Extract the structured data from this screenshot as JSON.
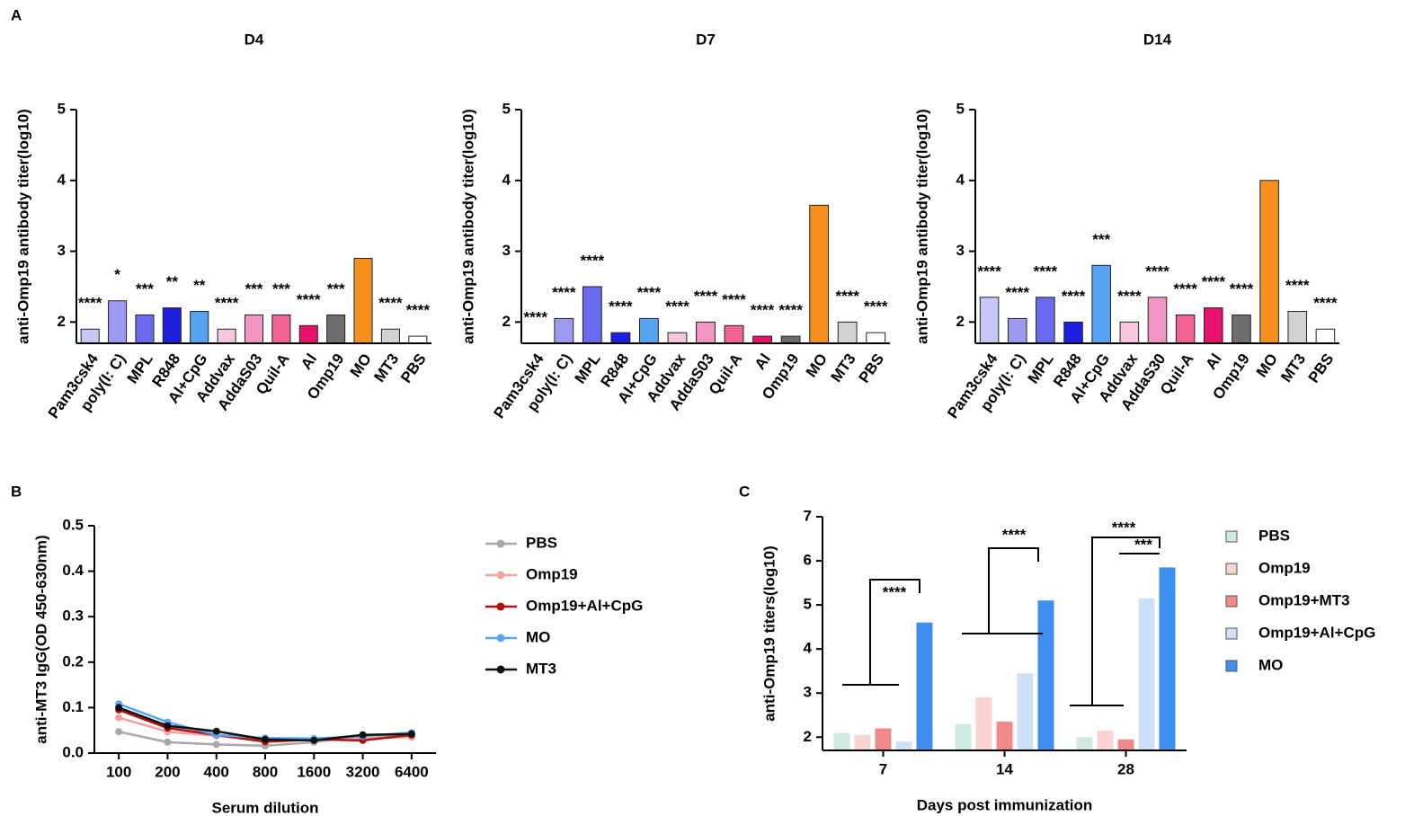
{
  "panel_labels": [
    "A",
    "B",
    "C"
  ],
  "chart_data": [
    {
      "type": "bar",
      "title": "D4",
      "y_label": "anti-Omp19 antibody titer(log10)",
      "categories": [
        "Pam3csk4",
        "poly(I: C)",
        "MPL",
        "R848",
        "Al+CpG",
        "Addvax",
        "AddaS03",
        "Quil-A",
        "Al",
        "Omp19",
        "MO",
        "MT3",
        "PBS"
      ],
      "colors": [
        "#c7c7f7",
        "#9b9bf2",
        "#6a6aee",
        "#1f1fe0",
        "#58a2f2",
        "#f6c6dc",
        "#f294c4",
        "#f06394",
        "#e8126c",
        "#6e6e6e",
        "#f5901f",
        "#d2d2d2",
        "#ffffff"
      ],
      "values": [
        1.9,
        2.3,
        2.1,
        2.2,
        2.15,
        1.9,
        2.1,
        2.1,
        1.95,
        2.1,
        2.9,
        1.9,
        1.8
      ],
      "annotations": [
        "****",
        "*",
        "***",
        "**",
        "**",
        "****",
        "***",
        "***",
        "****",
        "***",
        null,
        "****",
        "****"
      ],
      "ylim": [
        1.7,
        5
      ],
      "yticks": [
        2,
        3,
        4,
        5
      ]
    },
    {
      "type": "bar",
      "title": "D7",
      "y_label": "anti-Omp19 antibody titer(log10)",
      "categories": [
        "Pam3csk4",
        "poly(I: C)",
        "MPL",
        "R848",
        "Al+CpG",
        "Addvax",
        "AddaS03",
        "Quil-A",
        "Al",
        "Omp19",
        "MO",
        "MT3",
        "PBS"
      ],
      "colors": [
        "#c7c7f7",
        "#9b9bf2",
        "#6a6aee",
        "#1f1fe0",
        "#58a2f2",
        "#f6c6dc",
        "#f294c4",
        "#f06394",
        "#e8126c",
        "#6e6e6e",
        "#f5901f",
        "#d2d2d2",
        "#ffffff"
      ],
      "values": [
        1.7,
        2.05,
        2.5,
        1.85,
        2.05,
        1.85,
        2.0,
        1.95,
        1.8,
        1.8,
        3.65,
        2.0,
        1.85
      ],
      "annotations": [
        "****",
        "****",
        "****",
        "****",
        "****",
        "****",
        "****",
        "****",
        "****",
        "****",
        null,
        "****",
        "****"
      ],
      "ylim": [
        1.7,
        5
      ],
      "yticks": [
        2,
        3,
        4,
        5
      ]
    },
    {
      "type": "bar",
      "title": "D14",
      "y_label": "anti-Omp19 antibody titer(log10)",
      "categories": [
        "Pam3csk4",
        "poly(I: C)",
        "MPL",
        "R848",
        "Al+CpG",
        "Addvax",
        "AddaS30",
        "Quil-A",
        "Al",
        "Omp19",
        "MO",
        "MT3",
        "PBS"
      ],
      "colors": [
        "#c7c7f7",
        "#9b9bf2",
        "#6a6aee",
        "#1f1fe0",
        "#58a2f2",
        "#f6c6dc",
        "#f294c4",
        "#f06394",
        "#e8126c",
        "#6e6e6e",
        "#f5901f",
        "#d2d2d2",
        "#ffffff"
      ],
      "values": [
        2.35,
        2.05,
        2.35,
        2.0,
        2.8,
        2.0,
        2.35,
        2.1,
        2.2,
        2.1,
        4.0,
        2.15,
        1.9
      ],
      "annotations": [
        "****",
        "****",
        "****",
        "****",
        "***",
        "****",
        "****",
        "****",
        "****",
        "****",
        null,
        "****",
        "****"
      ],
      "ylim": [
        1.7,
        5
      ],
      "yticks": [
        2,
        3,
        4,
        5
      ]
    },
    {
      "type": "line",
      "x_label": "Serum dilution",
      "y_label": "anti-MT3 IgG(OD 450-630nm)",
      "categories": [
        "100",
        "200",
        "400",
        "800",
        "1600",
        "3200",
        "6400"
      ],
      "series": [
        {
          "name": "PBS",
          "color": "#a8a8a8",
          "values": [
            0.047,
            0.024,
            0.019,
            0.016,
            0.024,
            0.04,
            0.035
          ]
        },
        {
          "name": "Omp19",
          "color": "#f5a0a0",
          "values": [
            0.078,
            0.047,
            0.038,
            0.028,
            0.03,
            0.033,
            0.035
          ]
        },
        {
          "name": "Omp19+Al+CpG",
          "color": "#b01010",
          "values": [
            0.095,
            0.055,
            0.04,
            0.025,
            0.03,
            0.028,
            0.04
          ]
        },
        {
          "name": "MO",
          "color": "#5aa5f5",
          "values": [
            0.108,
            0.068,
            0.04,
            0.033,
            0.032,
            0.037,
            0.045
          ]
        },
        {
          "name": "MT3",
          "color": "#111111",
          "values": [
            0.1,
            0.06,
            0.048,
            0.03,
            0.028,
            0.04,
            0.042
          ]
        }
      ],
      "ylim": [
        0,
        0.5
      ],
      "yticks": [
        {
          "value": 0,
          "label": "0.0"
        },
        {
          "value": 0.1,
          "label": "0.1"
        },
        {
          "value": 0.2,
          "label": "0.2"
        },
        {
          "value": 0.3,
          "label": "0.3"
        },
        {
          "value": 0.4,
          "label": "0.4"
        },
        {
          "value": 0.5,
          "label": "0.5"
        }
      ]
    },
    {
      "type": "grouped_bar",
      "x_label": "Days post immunization",
      "y_label": "anti-Omp19 titers(log10)",
      "categories": [
        "7",
        "14",
        "28"
      ],
      "series": [
        {
          "name": "PBS",
          "color": "#cfeae0",
          "values": [
            2.1,
            2.3,
            2.0
          ]
        },
        {
          "name": "Omp19",
          "color": "#fbd3d3",
          "values": [
            2.05,
            2.9,
            2.15
          ]
        },
        {
          "name": "Omp19+MT3",
          "color": "#f08a8a",
          "values": [
            2.2,
            2.35,
            1.95
          ]
        },
        {
          "name": "Omp19+Al+CpG",
          "color": "#cde0f6",
          "values": [
            1.9,
            3.45,
            5.15
          ]
        },
        {
          "name": "MO",
          "color": "#3f8ef0",
          "values": [
            4.6,
            5.1,
            5.85
          ]
        }
      ],
      "annotations": [
        "****",
        "****",
        "****",
        "***"
      ],
      "ylim": [
        1.7,
        7
      ],
      "yticks": [
        2,
        3,
        4,
        5,
        6,
        7
      ]
    }
  ]
}
